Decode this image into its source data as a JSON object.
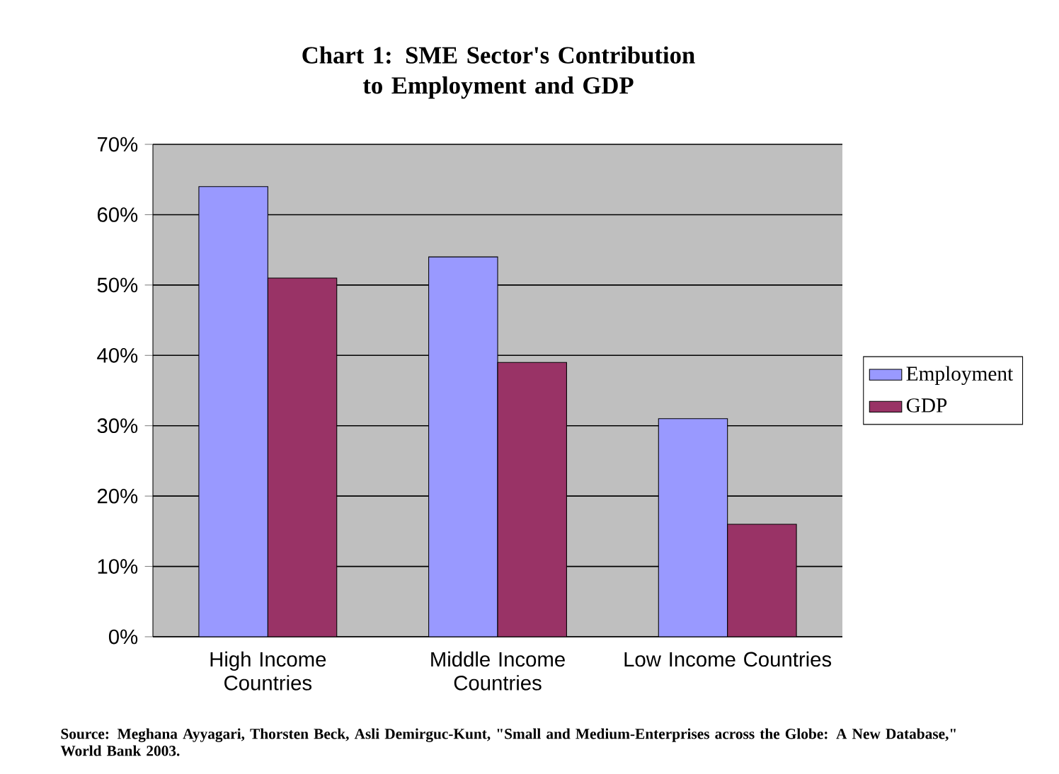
{
  "chart_data": {
    "type": "bar",
    "title": "Chart 1: SME Sector's Contribution to Employment and GDP",
    "categories": [
      "High Income Countries",
      "Middle Income Countries",
      "Low Income Countries"
    ],
    "series": [
      {
        "name": "Employment",
        "color": "#9999ff",
        "values": [
          64,
          54,
          31
        ]
      },
      {
        "name": "GDP",
        "color": "#993366",
        "values": [
          51,
          39,
          16
        ]
      }
    ],
    "ylim": [
      0,
      70
    ],
    "yticks": [
      {
        "value": 0,
        "label": "0%"
      },
      {
        "value": 10,
        "label": "10%"
      },
      {
        "value": 20,
        "label": "20%"
      },
      {
        "value": 30,
        "label": "30%"
      },
      {
        "value": 40,
        "label": "40%"
      },
      {
        "value": 50,
        "label": "50%"
      },
      {
        "value": 60,
        "label": "60%"
      },
      {
        "value": 70,
        "label": "70%"
      }
    ],
    "grid": "y",
    "legend": "right",
    "annotations": [
      "Source: Meghana Ayyagari, Thorsten Beck, Asli Demirguc-Kunt, \"Small and Medium-Enterprises across the Globe: A New Database,\" World Bank 2003."
    ]
  }
}
